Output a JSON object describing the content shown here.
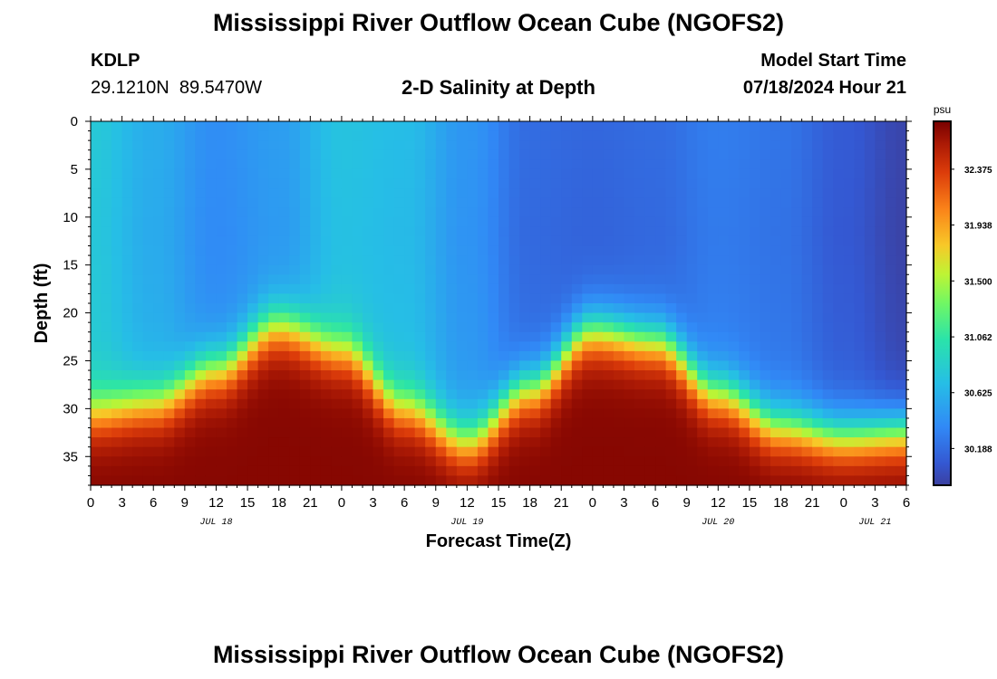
{
  "title": "Mississippi River Outflow Ocean Cube (NGOFS2)",
  "footer_title": "Mississippi River Outflow Ocean Cube (NGOFS2)",
  "station": {
    "id": "KDLP",
    "coords": "29.1210N  89.5470W"
  },
  "plot_title": "2-D Salinity at Depth",
  "model_start": {
    "label": "Model Start Time",
    "value": "07/18/2024 Hour 21"
  },
  "chart_data": {
    "type": "heatmap",
    "title": "2-D Salinity at Depth",
    "xlabel": "Forecast Time(Z)",
    "ylabel": "Depth (ft)",
    "x_range_hours": [
      0,
      78
    ],
    "x_ticks": [
      "0",
      "3",
      "6",
      "9",
      "12",
      "15",
      "18",
      "21",
      "0",
      "3",
      "6",
      "9",
      "12",
      "15",
      "18",
      "21",
      "0",
      "3",
      "6",
      "9",
      "12",
      "15",
      "18",
      "21",
      "0",
      "3",
      "6"
    ],
    "day_labels": [
      {
        "label": "JUL 18",
        "hour": 12
      },
      {
        "label": "JUL 19",
        "hour": 36
      },
      {
        "label": "JUL 20",
        "hour": 60
      },
      {
        "label": "JUL 21",
        "hour": 75
      }
    ],
    "y_range": [
      0,
      38
    ],
    "y_ticks": [
      "0",
      "5",
      "10",
      "15",
      "20",
      "25",
      "30",
      "35"
    ],
    "colorbar": {
      "unit": "psu",
      "ticks": [
        "32.375",
        "31.938",
        "31.500",
        "31.062",
        "30.625",
        "30.188"
      ],
      "range": [
        29.9,
        32.75
      ]
    },
    "halocline_depth": [
      {
        "hour": 0,
        "depth": 30.5
      },
      {
        "hour": 6,
        "depth": 29.5
      },
      {
        "hour": 12,
        "depth": 26
      },
      {
        "hour": 18,
        "depth": 21.5
      },
      {
        "hour": 24,
        "depth": 24
      },
      {
        "hour": 30,
        "depth": 30
      },
      {
        "hour": 36,
        "depth": 33.5
      },
      {
        "hour": 42,
        "depth": 28
      },
      {
        "hour": 48,
        "depth": 22
      },
      {
        "hour": 54,
        "depth": 23
      },
      {
        "hour": 60,
        "depth": 28.5
      },
      {
        "hour": 66,
        "depth": 32
      },
      {
        "hour": 72,
        "depth": 33
      },
      {
        "hour": 78,
        "depth": 32.5
      }
    ],
    "surface_salinity": [
      {
        "hour": 0,
        "value": 30.75
      },
      {
        "hour": 6,
        "value": 30.55
      },
      {
        "hour": 12,
        "value": 30.35
      },
      {
        "hour": 18,
        "value": 30.45
      },
      {
        "hour": 24,
        "value": 30.7
      },
      {
        "hour": 30,
        "value": 30.65
      },
      {
        "hour": 36,
        "value": 30.4
      },
      {
        "hour": 42,
        "value": 30.15
      },
      {
        "hour": 48,
        "value": 30.12
      },
      {
        "hour": 54,
        "value": 30.15
      },
      {
        "hour": 60,
        "value": 30.25
      },
      {
        "hour": 66,
        "value": 30.2
      },
      {
        "hour": 72,
        "value": 30.05
      },
      {
        "hour": 78,
        "value": 29.9
      }
    ],
    "deep_salinity": 32.7
  }
}
